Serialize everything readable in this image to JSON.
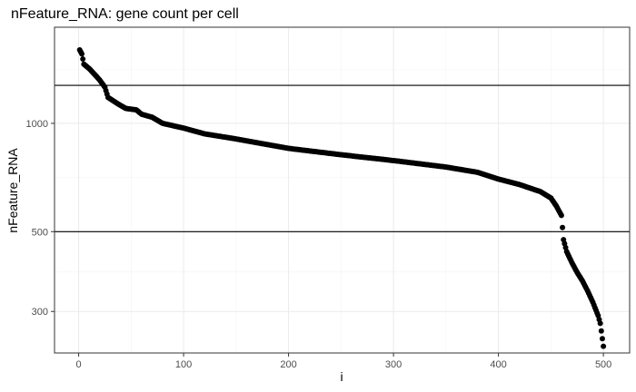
{
  "chart_data": {
    "type": "scatter",
    "title": "nFeature_RNA: gene count per cell",
    "xlabel": "i",
    "ylabel": "nFeature_RNA",
    "y_scale": "log10",
    "xlim": [
      -23,
      525
    ],
    "ylim": [
      230,
      1850
    ],
    "x_ticks": [
      0,
      100,
      200,
      300,
      400,
      500
    ],
    "x_tick_labels": [
      "0",
      "100",
      "200",
      "300",
      "400",
      "500"
    ],
    "y_ticks": [
      300,
      500,
      1000
    ],
    "y_tick_labels": [
      "300",
      "500",
      "1000"
    ],
    "grid": true,
    "legend": "none",
    "hlines": [
      1275,
      500
    ],
    "point_color": "#000000",
    "curve_knots": [
      [
        1,
        1600
      ],
      [
        3,
        1560
      ],
      [
        5,
        1460
      ],
      [
        10,
        1420
      ],
      [
        15,
        1370
      ],
      [
        20,
        1320
      ],
      [
        25,
        1260
      ],
      [
        28,
        1180
      ],
      [
        32,
        1160
      ],
      [
        38,
        1130
      ],
      [
        45,
        1100
      ],
      [
        55,
        1090
      ],
      [
        60,
        1060
      ],
      [
        70,
        1040
      ],
      [
        80,
        1000
      ],
      [
        100,
        970
      ],
      [
        120,
        935
      ],
      [
        150,
        905
      ],
      [
        200,
        852
      ],
      [
        250,
        818
      ],
      [
        300,
        788
      ],
      [
        350,
        756
      ],
      [
        380,
        731
      ],
      [
        400,
        700
      ],
      [
        420,
        676
      ],
      [
        440,
        646
      ],
      [
        450,
        620
      ],
      [
        455,
        590
      ],
      [
        460,
        555
      ],
      [
        462,
        475
      ],
      [
        465,
        440
      ],
      [
        470,
        410
      ],
      [
        475,
        385
      ],
      [
        480,
        365
      ],
      [
        485,
        342
      ],
      [
        490,
        318
      ],
      [
        495,
        292
      ],
      [
        497,
        278
      ],
      [
        500,
        240
      ]
    ],
    "n_points": 500
  }
}
